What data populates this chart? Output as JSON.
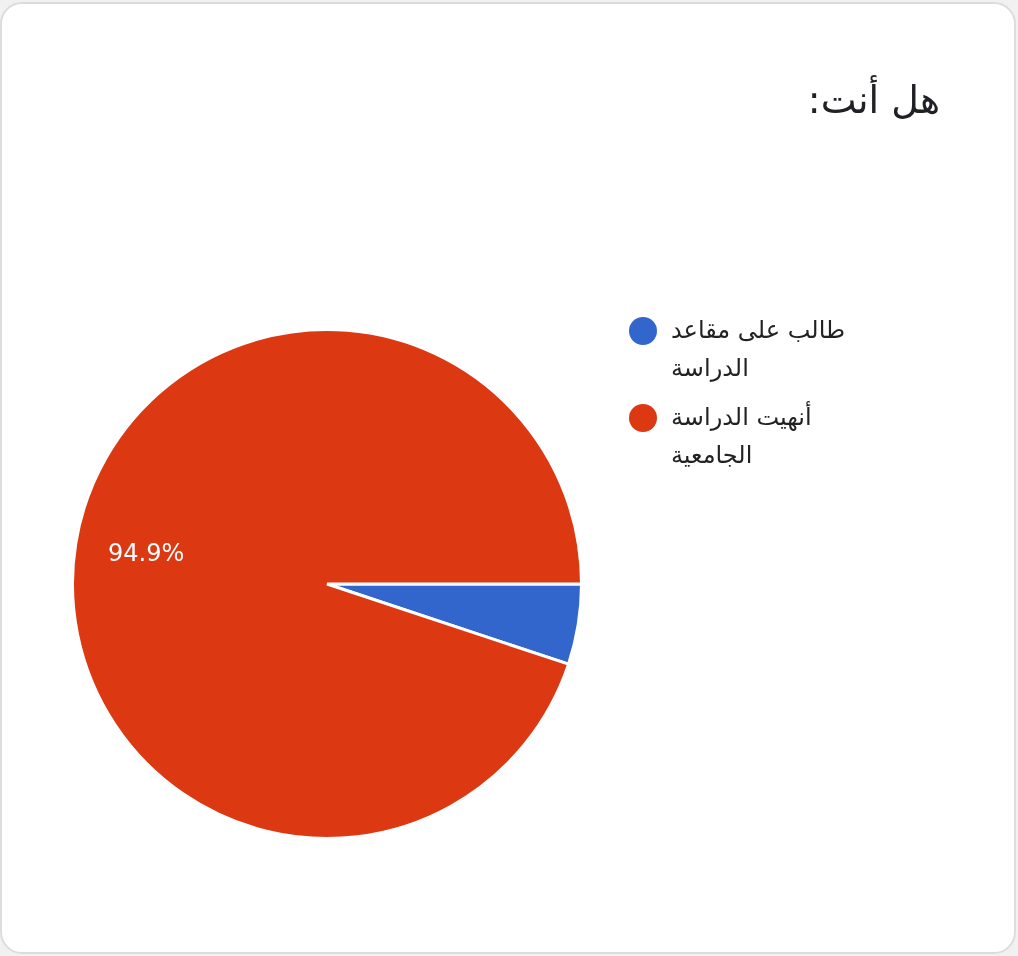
{
  "chart_data": {
    "type": "pie",
    "title": "هل أنت:",
    "categories": [
      "طالب على مقاعد الدراسة",
      "أنهيت الدراسة الجامعية"
    ],
    "values": [
      5.1,
      94.9
    ],
    "colors": [
      "#3366cc",
      "#dc3912"
    ],
    "value_labels": [
      null,
      "94.9%"
    ],
    "legend": "right"
  }
}
